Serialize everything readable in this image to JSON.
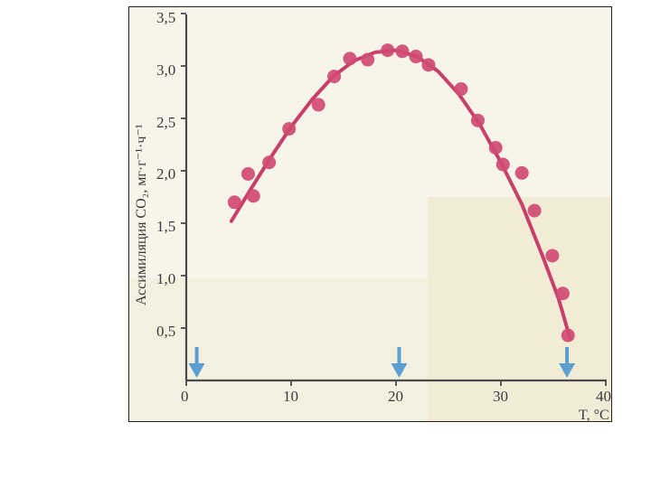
{
  "chart_data": {
    "type": "scatter",
    "title": "",
    "xlabel": "T, °C",
    "ylabel": "Ассимиляция CO₂, мг·г⁻¹·ч⁻¹",
    "xlim": [
      0,
      40
    ],
    "ylim": [
      0,
      3.5
    ],
    "x_ticks": [
      "0",
      "10",
      "20",
      "30",
      "40"
    ],
    "y_ticks": [
      "0,5",
      "1,0",
      "1,5",
      "2,0",
      "2,5",
      "3,0",
      "3,5"
    ],
    "grid": false,
    "series": [
      {
        "points": [
          {
            "x": 4.6,
            "y": 1.7
          },
          {
            "x": 5.9,
            "y": 1.97
          },
          {
            "x": 6.4,
            "y": 1.76
          },
          {
            "x": 7.9,
            "y": 2.08
          },
          {
            "x": 9.8,
            "y": 2.4
          },
          {
            "x": 12.6,
            "y": 2.63
          },
          {
            "x": 14.1,
            "y": 2.9
          },
          {
            "x": 15.6,
            "y": 3.07
          },
          {
            "x": 17.3,
            "y": 3.06
          },
          {
            "x": 19.2,
            "y": 3.15
          },
          {
            "x": 20.6,
            "y": 3.14
          },
          {
            "x": 21.9,
            "y": 3.09
          },
          {
            "x": 23.1,
            "y": 3.01
          },
          {
            "x": 26.2,
            "y": 2.78
          },
          {
            "x": 27.8,
            "y": 2.48
          },
          {
            "x": 29.5,
            "y": 2.22
          },
          {
            "x": 30.2,
            "y": 2.06
          },
          {
            "x": 32.0,
            "y": 1.98
          },
          {
            "x": 33.2,
            "y": 1.62
          },
          {
            "x": 34.9,
            "y": 1.19
          },
          {
            "x": 35.9,
            "y": 0.83
          },
          {
            "x": 36.4,
            "y": 0.43
          }
        ],
        "fit_curve": [
          {
            "x": 4.3,
            "y": 1.52
          },
          {
            "x": 6,
            "y": 1.8
          },
          {
            "x": 8,
            "y": 2.12
          },
          {
            "x": 10,
            "y": 2.42
          },
          {
            "x": 12,
            "y": 2.68
          },
          {
            "x": 14,
            "y": 2.9
          },
          {
            "x": 16,
            "y": 3.05
          },
          {
            "x": 18,
            "y": 3.13
          },
          {
            "x": 20,
            "y": 3.15
          },
          {
            "x": 22,
            "y": 3.09
          },
          {
            "x": 24,
            "y": 2.95
          },
          {
            "x": 26,
            "y": 2.73
          },
          {
            "x": 28,
            "y": 2.44
          },
          {
            "x": 30,
            "y": 2.08
          },
          {
            "x": 32,
            "y": 1.68
          },
          {
            "x": 34,
            "y": 1.18
          },
          {
            "x": 35.5,
            "y": 0.78
          },
          {
            "x": 36.6,
            "y": 0.4
          }
        ]
      }
    ],
    "markers": [
      {
        "x": 1,
        "label": "arrow-down"
      },
      {
        "x": 20.3,
        "label": "arrow-down"
      },
      {
        "x": 36.3,
        "label": "arrow-down"
      }
    ],
    "colors": {
      "series": "#d04a72",
      "curve": "#c8406a",
      "axis": "#4a4a4a",
      "arrow": "#5b9fd1",
      "paper": "#f7f4ea"
    }
  }
}
